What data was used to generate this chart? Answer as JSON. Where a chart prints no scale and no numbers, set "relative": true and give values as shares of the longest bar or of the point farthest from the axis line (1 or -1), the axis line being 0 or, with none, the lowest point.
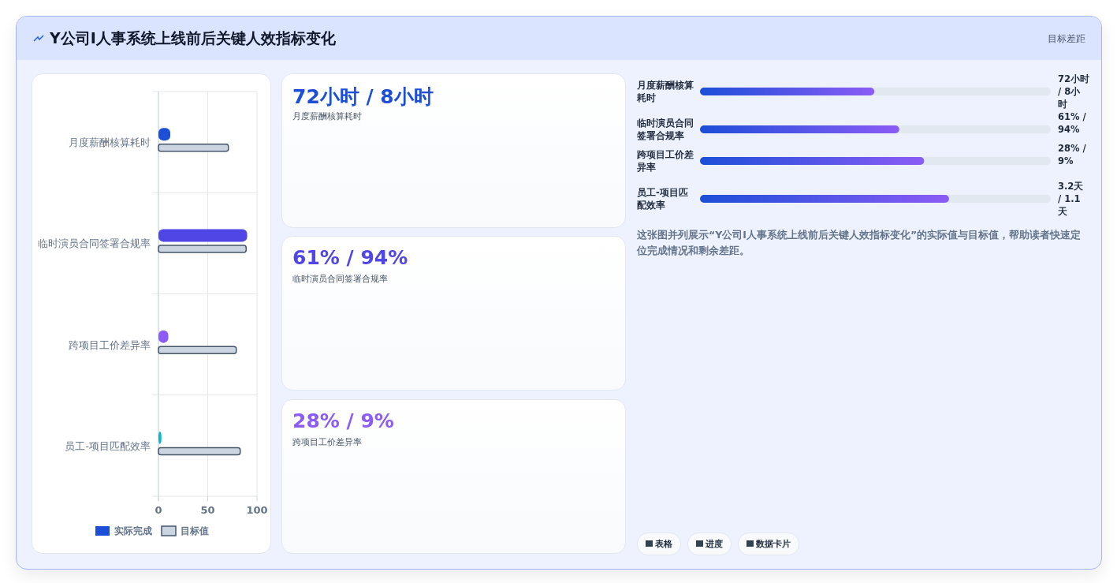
{
  "chart_data": [
    {
      "type": "other",
      "title": "Y公司I人事系统上线前后关键人效指标变化",
      "annotations": [
        "目标差距"
      ]
    },
    {
      "type": "bar",
      "orientation": "horizontal",
      "categories": [
        "月度薪酬核算耗时",
        "临时演员合同签署合规率",
        "跨项目工价差异率",
        "员工-项目匹配效率"
      ],
      "series": [
        {
          "name": "实际完成",
          "colors": [
            "#1d4ed8",
            "#4f46e5",
            "#8b5cf6",
            "#06b6d4"
          ],
          "values": [
            12,
            90,
            10,
            3
          ]
        },
        {
          "name": "目标值",
          "color": "#cbd5e1",
          "values": [
            71,
            89,
            79,
            83
          ]
        }
      ],
      "xlim": [
        0,
        100
      ],
      "xticks": [
        0,
        50,
        100
      ],
      "grid": true,
      "legend": "bottom"
    },
    {
      "type": "other",
      "title": "72小时 / 8小时",
      "subtitle": "月度薪酬核算耗时"
    },
    {
      "type": "other",
      "title": "61% / 94%",
      "subtitle": "临时演员合同签署合规率"
    },
    {
      "type": "other",
      "title": "28% / 9%",
      "subtitle": "跨项目工价差异率"
    },
    {
      "type": "bar",
      "orientation": "horizontal",
      "relative": true,
      "categories": [
        "月度薪酬核算耗时",
        "临时演员合同签署合规率",
        "跨项目工价差异率",
        "员工-项目匹配效率"
      ],
      "values": [
        0.7,
        0.8,
        0.9,
        1
      ],
      "color": "#1d4ed8",
      "annotations": [
        "72小时 / 8小时",
        "61% / 94%",
        "28% / 9%",
        "3.2天 / 1.1天",
        "这张图并列展示“Y公司I人事系统上线前后关键人效指标变化”的实际值与目标值，帮助读者快速定位完成情况和剩余差距。",
        "表格",
        "进度",
        "数据卡片"
      ]
    }
  ]
}
